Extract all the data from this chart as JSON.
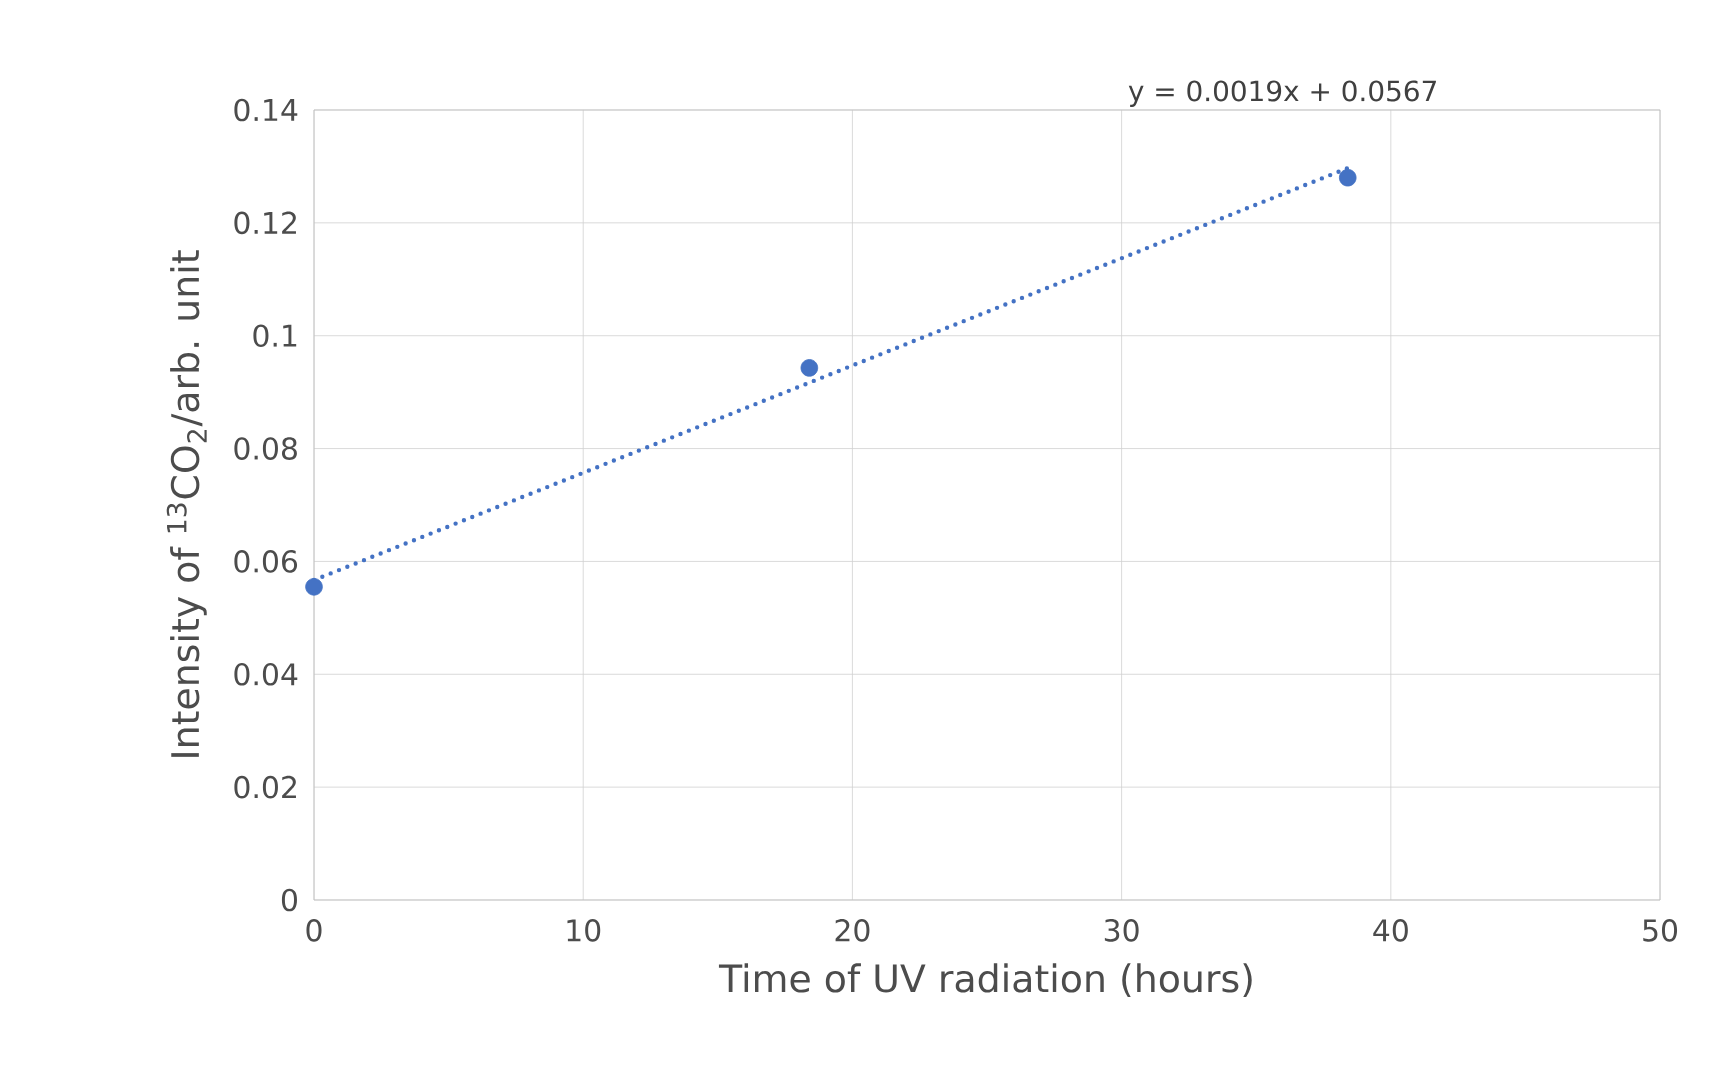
{
  "chart_data": {
    "type": "scatter",
    "xlabel": "Time of UV radiation (hours)",
    "ylabel": "Intensity of $^{13}$CO$_{2}$/arb. unit",
    "annotations": [
      "y = 0.0019x  + 0.0567"
    ],
    "series": [
      {
        "color": "#4472c4",
        "marker": "circle",
        "x": [
          0,
          18.4,
          38.4
        ],
        "values": [
          0.0555,
          0.0943,
          0.128
        ]
      },
      {
        "type": "line",
        "color": "#4472c4",
        "line_style": "dotted",
        "marker": "none",
        "x": [
          0,
          38.4
        ],
        "values": [
          0.0567,
          0.1297
        ]
      }
    ],
    "xlim": [
      0,
      50
    ],
    "xticks": [
      0,
      10,
      20,
      30,
      40,
      50
    ],
    "ylim": [
      0,
      0.14
    ],
    "yticks": [
      0,
      {
        "value": 0.02,
        "label": "0.02"
      },
      {
        "value": 0.04,
        "label": "0.04"
      },
      {
        "value": 0.06,
        "label": "0.06"
      },
      {
        "value": 0.08,
        "label": "0.08"
      },
      {
        "value": 0.1,
        "label": "0.1"
      },
      {
        "value": 0.12,
        "label": "0.12"
      },
      {
        "value": 0.14,
        "label": "0.14"
      }
    ],
    "grid": true
  }
}
